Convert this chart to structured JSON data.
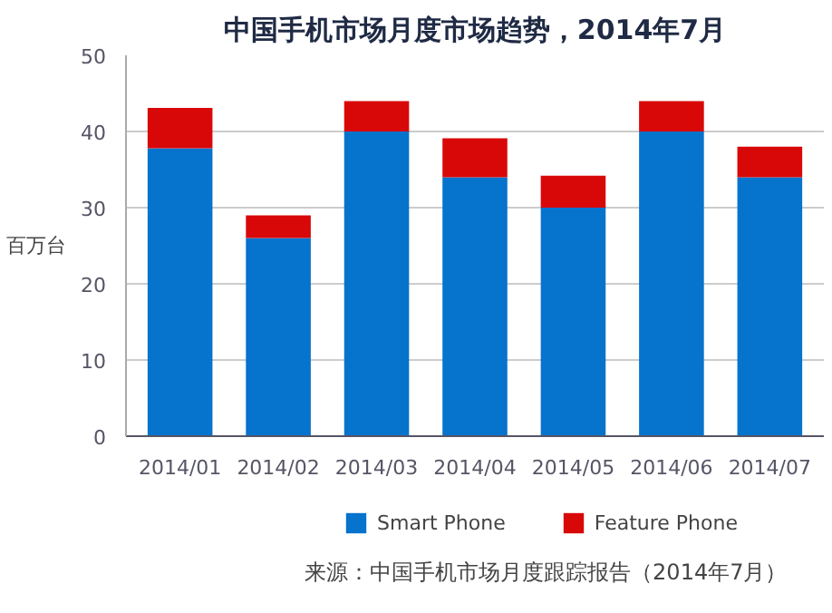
{
  "chart_data": {
    "type": "bar",
    "title": "中国手机市场月度市场趋势，2014年7月",
    "ylabel": "百万台",
    "categories": [
      "2014/01",
      "2014/02",
      "2014/03",
      "2014/04",
      "2014/05",
      "2014/06",
      "2014/07"
    ],
    "series": [
      {
        "name": "Smart Phone",
        "color": "#0673cd",
        "values": [
          37.8,
          26,
          40,
          34,
          30,
          40,
          34
        ]
      },
      {
        "name": "Feature Phone",
        "color": "#d90808",
        "values": [
          5.3,
          3,
          4,
          5.1,
          4.2,
          4,
          4
        ]
      }
    ],
    "stacked": true,
    "ylim": [
      0,
      50
    ],
    "yticks": [
      0,
      10,
      20,
      30,
      40,
      50
    ],
    "grid": "y",
    "legend": "bottom",
    "annotations": [
      "来源：中国手机市场月度跟踪报告（2014年7月）"
    ]
  }
}
